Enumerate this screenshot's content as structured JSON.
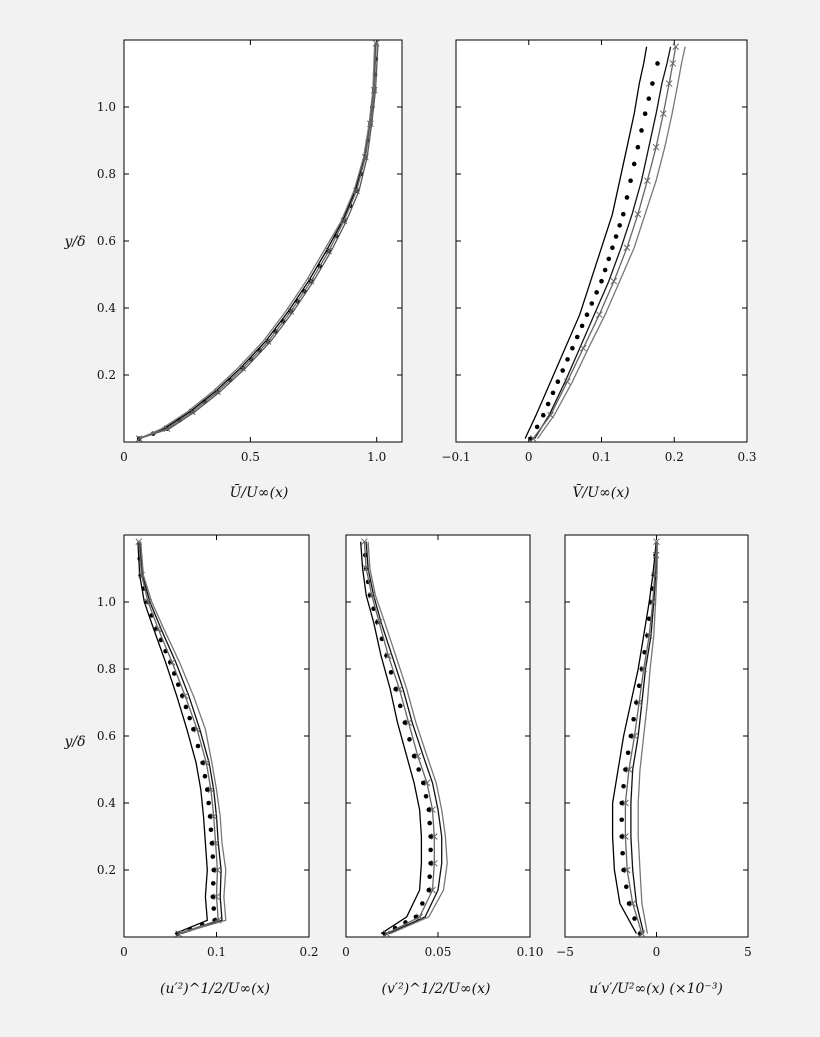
{
  "figure": {
    "y_axis_label": "y/δ"
  },
  "chart_data": [
    {
      "type": "line",
      "xlabel": "Ū/U∞(x)",
      "xlim": [
        0,
        1.1
      ],
      "ylim": [
        0,
        1.2
      ],
      "xticks": [
        0,
        0.5,
        1.0
      ],
      "xtick_labels": [
        "0",
        "0.5",
        "1.0"
      ],
      "yticks": [
        0.2,
        0.4,
        0.6,
        0.8,
        1.0
      ],
      "ytick_labels": [
        "0.2",
        "0.4",
        "0.6",
        "0.8",
        "1.0"
      ],
      "show_yticklabels": true,
      "series": [
        {
          "x": [
            0.06,
            0.17,
            0.27,
            0.37,
            0.47,
            0.57,
            0.66,
            0.74,
            0.81,
            0.87,
            0.92,
            0.955,
            0.975,
            0.99,
            1.0
          ],
          "y": [
            0.01,
            0.04,
            0.09,
            0.15,
            0.22,
            0.3,
            0.39,
            0.48,
            0.57,
            0.66,
            0.75,
            0.85,
            0.95,
            1.05,
            1.19
          ],
          "color": "#000000",
          "style": "dotted",
          "marker": "dot"
        },
        {
          "x": [
            0.06,
            0.16,
            0.26,
            0.36,
            0.46,
            0.56,
            0.65,
            0.73,
            0.8,
            0.865,
            0.915,
            0.95,
            0.972,
            0.988,
            0.995
          ],
          "y": [
            0.01,
            0.04,
            0.09,
            0.15,
            0.22,
            0.3,
            0.39,
            0.48,
            0.57,
            0.66,
            0.75,
            0.85,
            0.95,
            1.05,
            1.19
          ],
          "color": "#000000",
          "style": "solid"
        },
        {
          "x": [
            0.06,
            0.18,
            0.28,
            0.38,
            0.48,
            0.58,
            0.67,
            0.75,
            0.82,
            0.88,
            0.93,
            0.962,
            0.98,
            0.995,
            1.005
          ],
          "y": [
            0.01,
            0.04,
            0.09,
            0.15,
            0.22,
            0.3,
            0.39,
            0.48,
            0.57,
            0.66,
            0.75,
            0.85,
            0.95,
            1.05,
            1.19
          ],
          "color": "#555555",
          "style": "solid"
        },
        {
          "x": [
            0.06,
            0.15,
            0.25,
            0.35,
            0.45,
            0.55,
            0.64,
            0.72,
            0.79,
            0.86,
            0.91,
            0.948,
            0.97,
            0.985,
            0.992
          ],
          "y": [
            0.01,
            0.04,
            0.09,
            0.15,
            0.22,
            0.3,
            0.39,
            0.48,
            0.57,
            0.66,
            0.75,
            0.85,
            0.95,
            1.05,
            1.19
          ],
          "color": "#777777",
          "style": "solid"
        },
        {
          "x": [
            0.06,
            0.17,
            0.27,
            0.37,
            0.47,
            0.57,
            0.66,
            0.74,
            0.81,
            0.87,
            0.92,
            0.955,
            0.975,
            0.99,
            0.998
          ],
          "y": [
            0.01,
            0.04,
            0.09,
            0.15,
            0.22,
            0.3,
            0.39,
            0.48,
            0.57,
            0.66,
            0.75,
            0.85,
            0.95,
            1.05,
            1.19
          ],
          "color": "#666666",
          "style": "solid",
          "marker": "x"
        }
      ]
    },
    {
      "type": "line",
      "xlabel": "V̄/U∞(x)",
      "xlim": [
        -0.1,
        0.3
      ],
      "ylim": [
        0,
        1.2
      ],
      "xticks": [
        -0.1,
        0,
        0.1,
        0.2,
        0.3
      ],
      "xtick_labels": [
        "−0.1",
        "0",
        "0.1",
        "0.2",
        "0.3"
      ],
      "yticks": [
        0.2,
        0.4,
        0.6,
        0.8,
        1.0
      ],
      "show_yticklabels": false,
      "series": [
        {
          "x": [
            0.003,
            0.02,
            0.04,
            0.06,
            0.08,
            0.1,
            0.115,
            0.13,
            0.14,
            0.15,
            0.16,
            0.17,
            0.177,
            0.182
          ],
          "y": [
            0.01,
            0.08,
            0.18,
            0.28,
            0.38,
            0.48,
            0.58,
            0.68,
            0.78,
            0.88,
            0.98,
            1.07,
            1.13,
            1.18
          ],
          "color": "#000000",
          "style": "dotted",
          "marker": "dot"
        },
        {
          "x": [
            -0.005,
            0.01,
            0.03,
            0.05,
            0.07,
            0.085,
            0.1,
            0.115,
            0.125,
            0.135,
            0.145,
            0.152,
            0.158,
            0.162
          ],
          "y": [
            0.01,
            0.08,
            0.18,
            0.28,
            0.38,
            0.48,
            0.58,
            0.68,
            0.78,
            0.88,
            0.98,
            1.07,
            1.13,
            1.18
          ],
          "color": "#000000",
          "style": "solid"
        },
        {
          "x": [
            0.008,
            0.028,
            0.05,
            0.07,
            0.09,
            0.11,
            0.127,
            0.142,
            0.155,
            0.165,
            0.175,
            0.183,
            0.19,
            0.195
          ],
          "y": [
            0.01,
            0.08,
            0.18,
            0.28,
            0.38,
            0.48,
            0.58,
            0.68,
            0.78,
            0.88,
            0.98,
            1.07,
            1.13,
            1.18
          ],
          "color": "#111111",
          "style": "solid"
        },
        {
          "x": [
            0.012,
            0.035,
            0.06,
            0.082,
            0.105,
            0.125,
            0.145,
            0.16,
            0.175,
            0.187,
            0.197,
            0.205,
            0.21,
            0.215
          ],
          "y": [
            0.01,
            0.08,
            0.18,
            0.28,
            0.38,
            0.48,
            0.58,
            0.68,
            0.78,
            0.88,
            0.98,
            1.07,
            1.13,
            1.18
          ],
          "color": "#777777",
          "style": "solid"
        },
        {
          "x": [
            0.006,
            0.03,
            0.053,
            0.075,
            0.097,
            0.117,
            0.135,
            0.15,
            0.163,
            0.175,
            0.185,
            0.193,
            0.198,
            0.202
          ],
          "y": [
            0.01,
            0.08,
            0.18,
            0.28,
            0.38,
            0.48,
            0.58,
            0.68,
            0.78,
            0.88,
            0.98,
            1.07,
            1.13,
            1.18
          ],
          "color": "#666666",
          "style": "solid",
          "marker": "x"
        }
      ]
    },
    {
      "type": "line",
      "xlabel": "(u′²)^1/2/U∞(x)",
      "xlim": [
        0,
        0.2
      ],
      "ylim": [
        0,
        1.2
      ],
      "xticks": [
        0,
        0.1,
        0.2
      ],
      "xtick_labels": [
        "0",
        "0.1",
        "0.2"
      ],
      "yticks": [
        0.2,
        0.4,
        0.6,
        0.8,
        1.0
      ],
      "ytick_labels": [
        "0.2",
        "0.4",
        "0.6",
        "0.8",
        "1.0"
      ],
      "show_yticklabels": true,
      "series": [
        {
          "x": [
            0.058,
            0.098,
            0.096,
            0.097,
            0.095,
            0.093,
            0.09,
            0.085,
            0.075,
            0.063,
            0.05,
            0.035,
            0.025,
            0.018,
            0.016
          ],
          "y": [
            0.01,
            0.05,
            0.12,
            0.2,
            0.28,
            0.36,
            0.44,
            0.52,
            0.62,
            0.72,
            0.82,
            0.92,
            1.0,
            1.08,
            1.18
          ],
          "color": "#000000",
          "style": "dotted",
          "marker": "dot"
        },
        {
          "x": [
            0.055,
            0.09,
            0.088,
            0.09,
            0.088,
            0.086,
            0.083,
            0.078,
            0.068,
            0.057,
            0.045,
            0.032,
            0.022,
            0.017,
            0.015
          ],
          "y": [
            0.01,
            0.05,
            0.12,
            0.2,
            0.28,
            0.36,
            0.44,
            0.52,
            0.62,
            0.72,
            0.82,
            0.92,
            1.0,
            1.08,
            1.18
          ],
          "color": "#000000",
          "style": "solid"
        },
        {
          "x": [
            0.062,
            0.106,
            0.104,
            0.105,
            0.102,
            0.1,
            0.097,
            0.092,
            0.082,
            0.07,
            0.056,
            0.04,
            0.028,
            0.02,
            0.017
          ],
          "y": [
            0.01,
            0.05,
            0.12,
            0.2,
            0.28,
            0.36,
            0.44,
            0.52,
            0.62,
            0.72,
            0.82,
            0.92,
            1.0,
            1.08,
            1.18
          ],
          "color": "#111111",
          "style": "solid"
        },
        {
          "x": [
            0.06,
            0.11,
            0.108,
            0.11,
            0.106,
            0.104,
            0.1,
            0.095,
            0.088,
            0.075,
            0.06,
            0.043,
            0.03,
            0.021,
            0.018
          ],
          "y": [
            0.01,
            0.05,
            0.12,
            0.2,
            0.28,
            0.36,
            0.44,
            0.52,
            0.62,
            0.72,
            0.82,
            0.92,
            1.0,
            1.08,
            1.18
          ],
          "color": "#777777",
          "style": "solid"
        },
        {
          "x": [
            0.059,
            0.102,
            0.1,
            0.101,
            0.099,
            0.097,
            0.094,
            0.089,
            0.079,
            0.066,
            0.052,
            0.037,
            0.026,
            0.019,
            0.016
          ],
          "y": [
            0.01,
            0.05,
            0.12,
            0.2,
            0.28,
            0.36,
            0.44,
            0.52,
            0.62,
            0.72,
            0.82,
            0.92,
            1.0,
            1.08,
            1.18
          ],
          "color": "#666666",
          "style": "solid",
          "marker": "x"
        }
      ]
    },
    {
      "type": "line",
      "xlabel": "(v′²)^1/2/U∞(x)",
      "xlim": [
        0,
        0.1
      ],
      "ylim": [
        0,
        1.2
      ],
      "xticks": [
        0,
        0.05,
        0.1
      ],
      "xtick_labels": [
        "0",
        "0.05",
        "0.10"
      ],
      "yticks": [
        0.2,
        0.4,
        0.6,
        0.8,
        1.0
      ],
      "show_yticklabels": false,
      "series": [
        {
          "x": [
            0.021,
            0.038,
            0.045,
            0.046,
            0.046,
            0.045,
            0.042,
            0.037,
            0.032,
            0.027,
            0.022,
            0.017,
            0.013,
            0.011,
            0.01
          ],
          "y": [
            0.01,
            0.06,
            0.14,
            0.22,
            0.3,
            0.38,
            0.46,
            0.54,
            0.64,
            0.74,
            0.84,
            0.94,
            1.02,
            1.1,
            1.18
          ],
          "color": "#000000",
          "style": "dotted",
          "marker": "dot"
        },
        {
          "x": [
            0.019,
            0.033,
            0.04,
            0.041,
            0.041,
            0.04,
            0.037,
            0.033,
            0.028,
            0.024,
            0.019,
            0.015,
            0.011,
            0.009,
            0.008
          ],
          "y": [
            0.01,
            0.06,
            0.14,
            0.22,
            0.3,
            0.38,
            0.46,
            0.54,
            0.64,
            0.74,
            0.84,
            0.94,
            1.02,
            1.1,
            1.18
          ],
          "color": "#000000",
          "style": "solid"
        },
        {
          "x": [
            0.023,
            0.043,
            0.05,
            0.052,
            0.052,
            0.05,
            0.047,
            0.042,
            0.036,
            0.031,
            0.025,
            0.019,
            0.015,
            0.012,
            0.011
          ],
          "y": [
            0.01,
            0.06,
            0.14,
            0.22,
            0.3,
            0.38,
            0.46,
            0.54,
            0.64,
            0.74,
            0.84,
            0.94,
            1.02,
            1.1,
            1.18
          ],
          "color": "#111111",
          "style": "solid"
        },
        {
          "x": [
            0.024,
            0.045,
            0.053,
            0.055,
            0.054,
            0.052,
            0.049,
            0.044,
            0.038,
            0.033,
            0.027,
            0.021,
            0.016,
            0.013,
            0.012
          ],
          "y": [
            0.01,
            0.06,
            0.14,
            0.22,
            0.3,
            0.38,
            0.46,
            0.54,
            0.64,
            0.74,
            0.84,
            0.94,
            1.02,
            1.1,
            1.18
          ],
          "color": "#777777",
          "style": "solid"
        },
        {
          "x": [
            0.022,
            0.04,
            0.047,
            0.048,
            0.048,
            0.047,
            0.044,
            0.039,
            0.034,
            0.029,
            0.023,
            0.018,
            0.014,
            0.011,
            0.01
          ],
          "y": [
            0.01,
            0.06,
            0.14,
            0.22,
            0.3,
            0.38,
            0.46,
            0.54,
            0.64,
            0.74,
            0.84,
            0.94,
            1.02,
            1.1,
            1.18
          ],
          "color": "#666666",
          "style": "solid",
          "marker": "x"
        }
      ]
    },
    {
      "type": "line",
      "xlabel": "u′v′/U²∞(x) (×10⁻³)",
      "xlim": [
        -5,
        5
      ],
      "ylim": [
        0,
        1.2
      ],
      "xticks": [
        -5,
        0,
        5
      ],
      "xtick_labels": [
        "−5",
        "0",
        "5"
      ],
      "yticks": [
        0.2,
        0.4,
        0.6,
        0.8,
        1.0
      ],
      "show_yticklabels": false,
      "series": [
        {
          "x": [
            -0.9,
            -1.5,
            -1.8,
            -1.9,
            -1.9,
            -1.7,
            -1.4,
            -1.1,
            -0.8,
            -0.5,
            -0.3,
            -0.15,
            -0.05,
            0.0
          ],
          "y": [
            0.01,
            0.1,
            0.2,
            0.3,
            0.4,
            0.5,
            0.6,
            0.7,
            0.8,
            0.9,
            1.0,
            1.08,
            1.14,
            1.18
          ],
          "color": "#000000",
          "style": "dotted",
          "marker": "dot"
        },
        {
          "x": [
            -1.1,
            -2.0,
            -2.3,
            -2.4,
            -2.4,
            -2.1,
            -1.8,
            -1.4,
            -1.0,
            -0.7,
            -0.4,
            -0.2,
            -0.08,
            -0.02
          ],
          "y": [
            0.01,
            0.1,
            0.2,
            0.3,
            0.4,
            0.5,
            0.6,
            0.7,
            0.8,
            0.9,
            1.0,
            1.08,
            1.14,
            1.18
          ],
          "color": "#000000",
          "style": "solid"
        },
        {
          "x": [
            -0.7,
            -1.1,
            -1.3,
            -1.4,
            -1.4,
            -1.3,
            -1.0,
            -0.8,
            -0.6,
            -0.3,
            -0.15,
            -0.05,
            0.0,
            0.02
          ],
          "y": [
            0.01,
            0.1,
            0.2,
            0.3,
            0.4,
            0.5,
            0.6,
            0.7,
            0.8,
            0.9,
            1.0,
            1.08,
            1.14,
            1.18
          ],
          "color": "#111111",
          "style": "solid"
        },
        {
          "x": [
            -0.5,
            -0.8,
            -0.9,
            -1.0,
            -1.0,
            -0.9,
            -0.7,
            -0.5,
            -0.35,
            -0.15,
            -0.05,
            0.02,
            0.05,
            0.05
          ],
          "y": [
            0.01,
            0.1,
            0.2,
            0.3,
            0.4,
            0.5,
            0.6,
            0.7,
            0.8,
            0.9,
            1.0,
            1.08,
            1.14,
            1.18
          ],
          "color": "#777777",
          "style": "solid"
        },
        {
          "x": [
            -0.8,
            -1.3,
            -1.6,
            -1.7,
            -1.7,
            -1.5,
            -1.2,
            -0.95,
            -0.7,
            -0.4,
            -0.2,
            -0.1,
            -0.02,
            0.0
          ],
          "y": [
            0.01,
            0.1,
            0.2,
            0.3,
            0.4,
            0.5,
            0.6,
            0.7,
            0.8,
            0.9,
            1.0,
            1.08,
            1.14,
            1.18
          ],
          "color": "#666666",
          "style": "solid",
          "marker": "x"
        }
      ]
    }
  ]
}
